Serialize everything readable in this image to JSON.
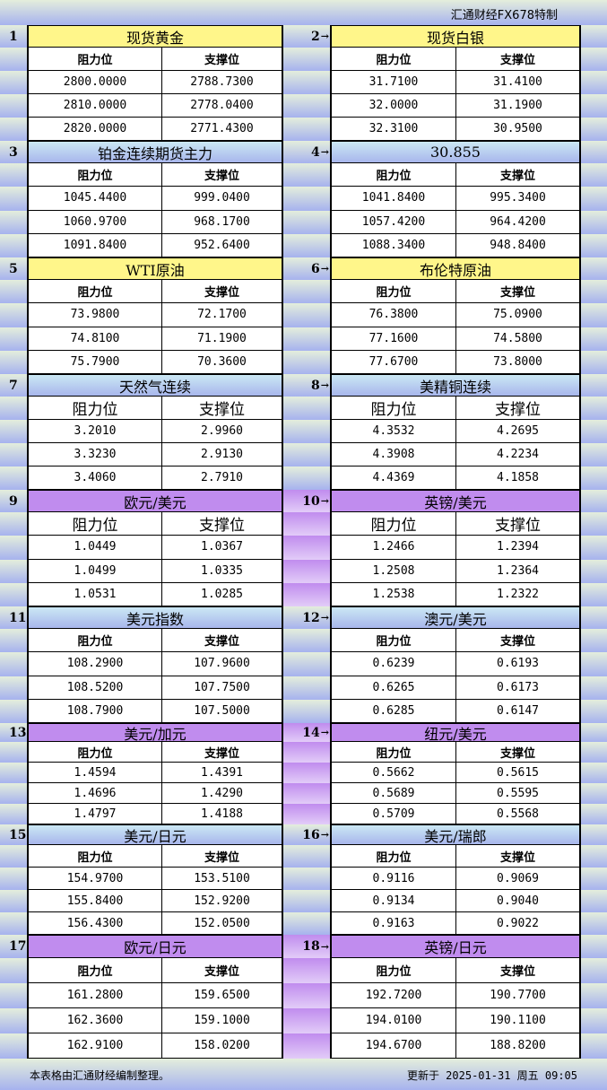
{
  "brand": "汇通财经FX678特制",
  "column_headers": {
    "resistance": "阻力位",
    "support": "支撑位"
  },
  "colors": {
    "yellow": "#fff68a",
    "blue": "#a8b6ec",
    "purple": "#c08cee"
  },
  "sections": [
    {
      "pair": [
        {
          "no": "1",
          "title": "现货黄金",
          "header_color": "yellow",
          "rows": [
            [
              "2800.0000",
              "2788.7300"
            ],
            [
              "2810.0000",
              "2778.0400"
            ],
            [
              "2820.0000",
              "2771.4300"
            ]
          ]
        },
        {
          "no": "2",
          "title": "现货白银",
          "header_color": "yellow",
          "rows": [
            [
              "31.7100",
              "31.4100"
            ],
            [
              "32.0000",
              "31.1900"
            ],
            [
              "32.3100",
              "30.9500"
            ]
          ]
        }
      ]
    },
    {
      "pair": [
        {
          "no": "3",
          "title": "铂金连续期货主力",
          "header_color": "blue",
          "rows": [
            [
              "1045.4400",
              "999.0400"
            ],
            [
              "1060.9700",
              "968.1700"
            ],
            [
              "1091.8400",
              "952.6400"
            ]
          ]
        },
        {
          "no": "4",
          "title": "30.855",
          "header_color": "blue",
          "rows": [
            [
              "1041.8400",
              "995.3400"
            ],
            [
              "1057.4200",
              "964.4200"
            ],
            [
              "1088.3400",
              "948.8400"
            ]
          ]
        }
      ]
    },
    {
      "pair": [
        {
          "no": "5",
          "title": "WTI原油",
          "header_color": "yellow",
          "rows": [
            [
              "73.9800",
              "72.1700"
            ],
            [
              "74.8100",
              "71.1900"
            ],
            [
              "75.7900",
              "70.3600"
            ]
          ]
        },
        {
          "no": "6",
          "title": "布伦特原油",
          "header_color": "yellow",
          "rows": [
            [
              "76.3800",
              "75.0900"
            ],
            [
              "77.1600",
              "74.5800"
            ],
            [
              "77.6700",
              "73.8000"
            ]
          ]
        }
      ]
    },
    {
      "pair": [
        {
          "no": "7",
          "title": "天然气连续",
          "header_color": "blue",
          "rows": [
            [
              "3.2010",
              "2.9960"
            ],
            [
              "3.3230",
              "2.9130"
            ],
            [
              "3.4060",
              "2.7910"
            ]
          ]
        },
        {
          "no": "8",
          "title": "美精铜连续",
          "header_color": "blue",
          "rows": [
            [
              "4.3532",
              "4.2695"
            ],
            [
              "4.3908",
              "4.2234"
            ],
            [
              "4.4369",
              "4.1858"
            ]
          ]
        }
      ]
    },
    {
      "pair": [
        {
          "no": "9",
          "title": "欧元/美元",
          "header_color": "purple",
          "rows": [
            [
              "1.0449",
              "1.0367"
            ],
            [
              "1.0499",
              "1.0335"
            ],
            [
              "1.0531",
              "1.0285"
            ]
          ]
        },
        {
          "no": "10",
          "title": "英镑/美元",
          "header_color": "purple",
          "rows": [
            [
              "1.2466",
              "1.2394"
            ],
            [
              "1.2508",
              "1.2364"
            ],
            [
              "1.2538",
              "1.2322"
            ]
          ]
        }
      ]
    },
    {
      "pair": [
        {
          "no": "11",
          "title": "美元指数",
          "header_color": "blue",
          "rows": [
            [
              "108.2900",
              "107.9600"
            ],
            [
              "108.5200",
              "107.7500"
            ],
            [
              "108.7900",
              "107.5000"
            ]
          ]
        },
        {
          "no": "12",
          "title": "澳元/美元",
          "header_color": "blue",
          "rows": [
            [
              "0.6239",
              "0.6193"
            ],
            [
              "0.6265",
              "0.6173"
            ],
            [
              "0.6285",
              "0.6147"
            ]
          ]
        }
      ]
    },
    {
      "pair": [
        {
          "no": "13",
          "title": "美元/加元",
          "header_color": "purple",
          "rows": [
            [
              "1.4594",
              "1.4391"
            ],
            [
              "1.4696",
              "1.4290"
            ],
            [
              "1.4797",
              "1.4188"
            ]
          ]
        },
        {
          "no": "14",
          "title": "纽元/美元",
          "header_color": "purple",
          "rows": [
            [
              "0.5662",
              "0.5615"
            ],
            [
              "0.5689",
              "0.5595"
            ],
            [
              "0.5709",
              "0.5568"
            ]
          ]
        }
      ]
    },
    {
      "pair": [
        {
          "no": "15",
          "title": "美元/日元",
          "header_color": "blue",
          "rows": [
            [
              "154.9700",
              "153.5100"
            ],
            [
              "155.8400",
              "152.9200"
            ],
            [
              "156.4300",
              "152.0500"
            ]
          ]
        },
        {
          "no": "16",
          "title": "美元/瑞郎",
          "header_color": "blue",
          "rows": [
            [
              "0.9116",
              "0.9069"
            ],
            [
              "0.9134",
              "0.9040"
            ],
            [
              "0.9163",
              "0.9022"
            ]
          ]
        }
      ]
    },
    {
      "pair": [
        {
          "no": "17",
          "title": "欧元/日元",
          "header_color": "purple",
          "rows": [
            [
              "161.2800",
              "159.6500"
            ],
            [
              "162.3600",
              "159.1000"
            ],
            [
              "162.9100",
              "158.0200"
            ]
          ]
        },
        {
          "no": "18",
          "title": "英镑/日元",
          "header_color": "purple",
          "rows": [
            [
              "192.7200",
              "190.7700"
            ],
            [
              "194.0100",
              "190.1100"
            ],
            [
              "194.6700",
              "188.8200"
            ]
          ]
        }
      ]
    }
  ],
  "footer": {
    "note": "本表格由汇通财经编制整理。",
    "updated": "更新于 2025-01-31 周五 09:05"
  }
}
